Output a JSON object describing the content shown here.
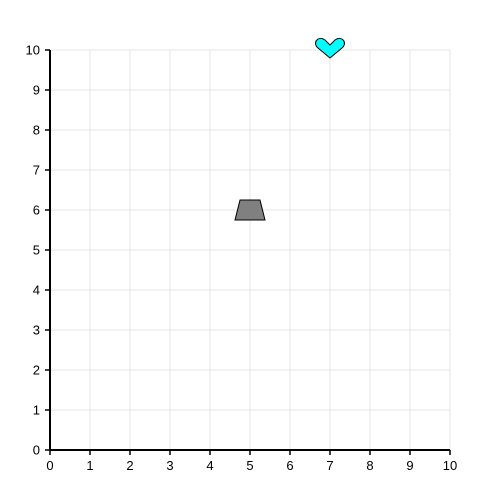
{
  "chart_data": {
    "type": "scatter",
    "title": "",
    "xlabel": "",
    "ylabel": "",
    "xlim": [
      0,
      10
    ],
    "ylim": [
      0,
      10
    ],
    "grid": true,
    "x_ticks": [
      "0",
      "1",
      "2",
      "3",
      "4",
      "5",
      "6",
      "7",
      "8",
      "9",
      "10"
    ],
    "y_ticks": [
      "0",
      "1",
      "2",
      "3",
      "4",
      "5",
      "6",
      "7",
      "8",
      "9",
      "10"
    ],
    "points": [
      {
        "x": 5,
        "y": 6,
        "marker": "trapezoid-icon",
        "color": "#808080"
      },
      {
        "x": 7,
        "y": 10,
        "marker": "heart-icon",
        "color": "#00ffff"
      }
    ]
  }
}
